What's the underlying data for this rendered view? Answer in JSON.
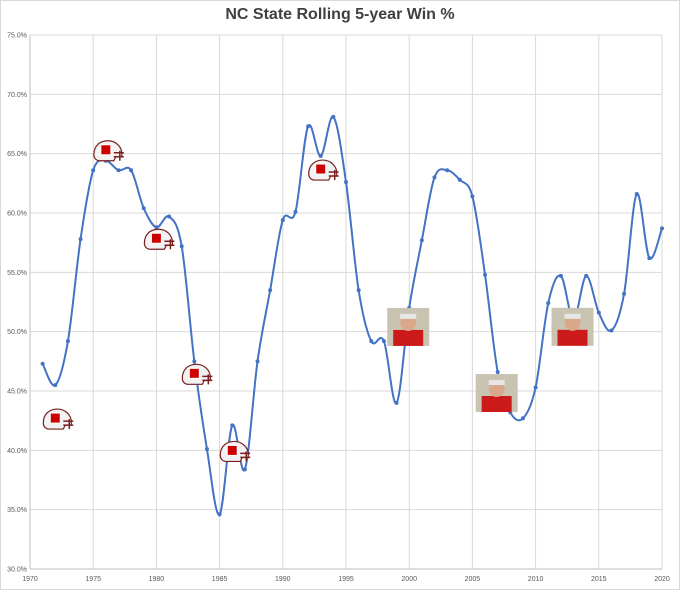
{
  "chart_data": {
    "type": "line",
    "title": "NC State Rolling 5-year Win %",
    "xlabel": "",
    "ylabel": "",
    "xlim": [
      1970,
      2020
    ],
    "ylim": [
      0.3,
      0.75
    ],
    "x_ticks": [
      "1970",
      "1975",
      "1980",
      "1985",
      "1990",
      "1995",
      "2000",
      "2005",
      "2010",
      "2015",
      "2020"
    ],
    "y_ticks": [
      "30.0%",
      "35.0%",
      "40.0%",
      "45.0%",
      "50.0%",
      "55.0%",
      "60.0%",
      "65.0%",
      "70.0%",
      "75.0%"
    ],
    "grid": true,
    "line_color": "#4472c4",
    "series": [
      {
        "name": "",
        "x": [
          1971,
          1972,
          1973,
          1974,
          1975,
          1976,
          1977,
          1978,
          1979,
          1980,
          1981,
          1982,
          1983,
          1984,
          1985,
          1986,
          1987,
          1988,
          1989,
          1990,
          1991,
          1992,
          1993,
          1994,
          1995,
          1996,
          1997,
          1998,
          1999,
          2000,
          2001,
          2002,
          2003,
          2004,
          2005,
          2006,
          2007,
          2008,
          2009,
          2010,
          2011,
          2012,
          2013,
          2014,
          2015,
          2016,
          2017,
          2018,
          2019,
          2020
        ],
        "values": [
          0.473,
          0.455,
          0.492,
          0.578,
          0.636,
          0.644,
          0.636,
          0.636,
          0.604,
          0.588,
          0.597,
          0.572,
          0.475,
          0.401,
          0.346,
          0.421,
          0.384,
          0.475,
          0.535,
          0.594,
          0.601,
          0.673,
          0.648,
          0.681,
          0.626,
          0.535,
          0.492,
          0.492,
          0.44,
          0.52,
          0.577,
          0.63,
          0.636,
          0.628,
          0.614,
          0.548,
          0.466,
          0.432,
          0.427,
          0.453,
          0.524,
          0.547,
          0.51,
          0.547,
          0.516,
          0.501,
          0.532,
          0.616,
          0.562,
          0.587
        ]
      }
    ]
  },
  "annotations": [
    {
      "icon": "helmet-icon",
      "year": 1972
    },
    {
      "icon": "helmet-icon",
      "year": 1976
    },
    {
      "icon": "helmet-icon",
      "year": 1980
    },
    {
      "icon": "helmet-icon",
      "year": 1983
    },
    {
      "icon": "helmet-icon",
      "year": 1986
    },
    {
      "icon": "helmet-icon",
      "year": 1993
    },
    {
      "icon": "coach-photo-icon",
      "year": 2000
    },
    {
      "icon": "coach-photo-icon",
      "year": 2007
    },
    {
      "icon": "coach-photo-icon",
      "year": 2013
    }
  ]
}
